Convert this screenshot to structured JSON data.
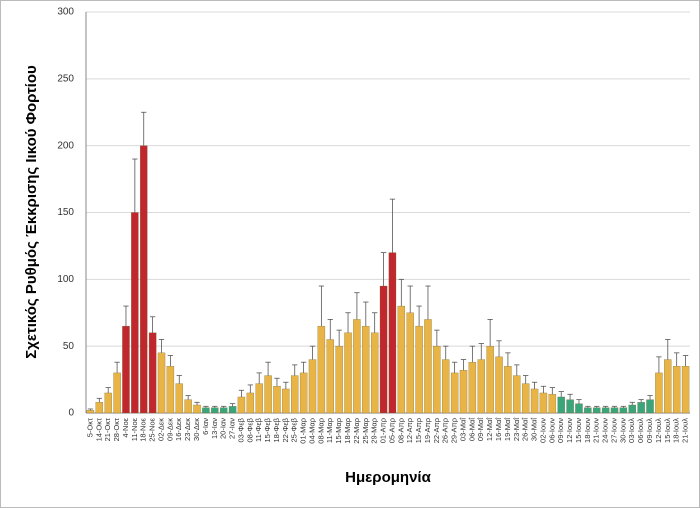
{
  "chart_data": {
    "type": "bar",
    "y_label": "Σχετικός Ρυθμός Έκκρισης Ιικού Φορτίου",
    "x_label": "Ημερομηνία",
    "categories": [
      "5-Οκτ",
      "14-Οκτ",
      "21-Οκτ",
      "28-Οκτ",
      "4-Νοε",
      "11-Νοε",
      "18-Νοε",
      "25-Νοε",
      "02-Δεκ",
      "09-Δεκ",
      "16-Δεκ",
      "23-Δεκ",
      "30-Δεκ",
      "6-Ιαν",
      "13-Ιαν",
      "20-Ιαν",
      "27-Ιαν",
      "03-Φεβ",
      "08-Φεβ",
      "11-Φεβ",
      "15-Φεβ",
      "18-Φεβ",
      "22-Φεβ",
      "25-Φεβ",
      "01-Μαρ",
      "04-Μαρ",
      "08-Μαρ",
      "11-Μαρ",
      "15-Μαρ",
      "18-Μαρ",
      "22-Μαρ",
      "25-Μαρ",
      "29-Μαρ",
      "01-Απρ",
      "05-Απρ",
      "08-Απρ",
      "12-Απρ",
      "15-Απρ",
      "19-Απρ",
      "22-Απρ",
      "26-Απρ",
      "29-Απρ",
      "03-Μαΐ",
      "06-Μαΐ",
      "09-Μαΐ",
      "12-Μαΐ",
      "16-Μαΐ",
      "19-Μαΐ",
      "23-Μαΐ",
      "26-Μαΐ",
      "30-Μαΐ",
      "02-Ιουν",
      "06-Ιουν",
      "09-Ιουν",
      "12-Ιουν",
      "15-Ιουν",
      "18-Ιουν",
      "21-Ιουν",
      "24-Ιουν",
      "27-Ιουν",
      "30-Ιουν",
      "03-Ιουλ",
      "06-Ιουλ",
      "09-Ιουλ",
      "12-Ιουλ",
      "15-Ιουλ",
      "18-Ιουλ",
      "21-Ιουλ"
    ],
    "values": [
      2,
      8,
      15,
      30,
      65,
      150,
      200,
      60,
      45,
      35,
      22,
      10,
      6,
      4,
      4,
      4,
      5,
      12,
      15,
      22,
      28,
      20,
      18,
      28,
      30,
      40,
      65,
      55,
      50,
      60,
      70,
      65,
      60,
      95,
      120,
      80,
      75,
      65,
      70,
      50,
      40,
      30,
      32,
      38,
      40,
      50,
      42,
      35,
      28,
      22,
      18,
      15,
      14,
      12,
      10,
      7,
      4,
      4,
      4,
      4,
      4,
      6,
      8,
      10,
      30,
      40,
      35,
      35
    ],
    "errors": [
      1,
      3,
      4,
      8,
      15,
      40,
      25,
      12,
      10,
      8,
      6,
      3,
      2,
      1,
      1,
      1,
      2,
      5,
      6,
      8,
      10,
      6,
      5,
      8,
      8,
      10,
      30,
      15,
      12,
      15,
      20,
      18,
      15,
      25,
      40,
      20,
      20,
      15,
      25,
      12,
      10,
      8,
      8,
      12,
      12,
      20,
      12,
      10,
      8,
      6,
      5,
      5,
      5,
      4,
      4,
      3,
      1,
      1,
      1,
      1,
      1,
      2,
      2,
      3,
      12,
      15,
      10,
      8
    ],
    "colors": [
      "#e8b445",
      "#e8b445",
      "#e8b445",
      "#e8b445",
      "#c0282d",
      "#c0282d",
      "#c0282d",
      "#c0282d",
      "#e8b445",
      "#e8b445",
      "#e8b445",
      "#e8b445",
      "#e8b445",
      "#3aa57a",
      "#3aa57a",
      "#3aa57a",
      "#3aa57a",
      "#e8b445",
      "#e8b445",
      "#e8b445",
      "#e8b445",
      "#e8b445",
      "#e8b445",
      "#e8b445",
      "#e8b445",
      "#e8b445",
      "#e8b445",
      "#e8b445",
      "#e8b445",
      "#e8b445",
      "#e8b445",
      "#e8b445",
      "#e8b445",
      "#c0282d",
      "#c0282d",
      "#e8b445",
      "#e8b445",
      "#e8b445",
      "#e8b445",
      "#e8b445",
      "#e8b445",
      "#e8b445",
      "#e8b445",
      "#e8b445",
      "#e8b445",
      "#e8b445",
      "#e8b445",
      "#e8b445",
      "#e8b445",
      "#e8b445",
      "#e8b445",
      "#e8b445",
      "#e8b445",
      "#3aa57a",
      "#3aa57a",
      "#3aa57a",
      "#3aa57a",
      "#3aa57a",
      "#3aa57a",
      "#3aa57a",
      "#3aa57a",
      "#3aa57a",
      "#3aa57a",
      "#3aa57a",
      "#e8b445",
      "#e8b445",
      "#e8b445",
      "#e8b445"
    ],
    "ylim": [
      0,
      300
    ],
    "yticks": [
      0,
      50,
      100,
      150,
      200,
      250,
      300
    ],
    "grid": true
  }
}
